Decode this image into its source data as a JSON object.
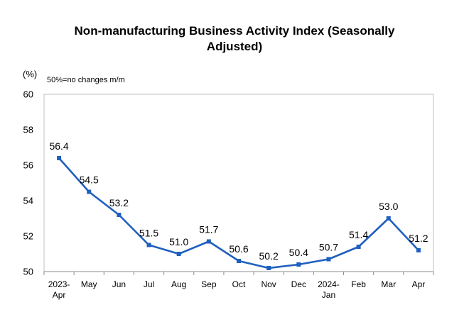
{
  "chart_data": {
    "type": "line",
    "title_line1": "Non-manufacturing Business Activity Index (Seasonally",
    "title_line2": "Adjusted)",
    "unit_label": "(%)",
    "note": "50%=no changes m/m",
    "categories": [
      [
        "2023-",
        "Apr"
      ],
      [
        "May"
      ],
      [
        "Jun"
      ],
      [
        "Jul"
      ],
      [
        "Aug"
      ],
      [
        "Sep"
      ],
      [
        "Oct"
      ],
      [
        "Nov"
      ],
      [
        "Dec"
      ],
      [
        "2024-",
        "Jan"
      ],
      [
        "Feb"
      ],
      [
        "Mar"
      ],
      [
        "Apr"
      ]
    ],
    "series": [
      {
        "values": [
          56.4,
          54.5,
          53.2,
          51.5,
          51.0,
          51.7,
          50.6,
          50.2,
          50.4,
          50.7,
          51.4,
          53.0,
          51.2
        ],
        "labels": [
          "56.4",
          "54.5",
          "53.2",
          "51.5",
          "51.0",
          "51.7",
          "50.6",
          "50.2",
          "50.4",
          "50.7",
          "51.4",
          "53.0",
          "51.2"
        ]
      }
    ],
    "ylim": [
      50,
      60
    ],
    "yticks": [
      "50",
      "52",
      "54",
      "56",
      "58",
      "60"
    ],
    "grid": false,
    "legend": "none",
    "line_color": "#1f5fbf"
  }
}
